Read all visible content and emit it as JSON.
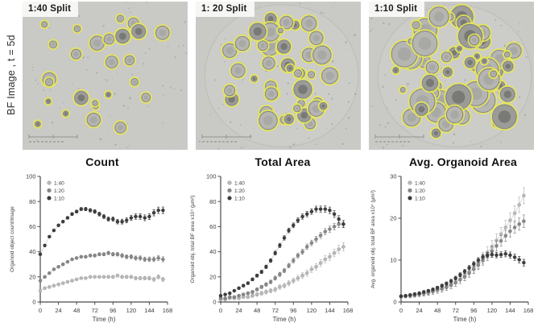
{
  "row_label": "BF Image , t = 5d",
  "images": [
    {
      "label": "1:40 Split",
      "seed": 11,
      "organoids": 26,
      "r_min": 3,
      "r_max": 9,
      "well": false
    },
    {
      "label": "1: 20 Split",
      "seed": 7,
      "organoids": 44,
      "r_min": 3,
      "r_max": 12,
      "well": true
    },
    {
      "label": "1:10 Split",
      "seed": 23,
      "organoids": 62,
      "r_min": 3,
      "r_max": 16,
      "well": true
    }
  ],
  "image_style": {
    "bg": "#c9c9c6",
    "well_fill": "#cdcdca",
    "well_edge": "#bdbdba",
    "organoid_fill": "#b5b5b2",
    "organoid_fill_dark": "#9b9b98",
    "organoid_edge": "#828280",
    "inner": "#a3a3a0",
    "inner_dark": "#6b6b68",
    "outline": "#e6e655",
    "speck": "#88888a"
  },
  "chart_style": {
    "axis": "#4a4a4a",
    "tick_text": "#3d3d3d",
    "line": "#cccccc",
    "colors": {
      "s40": "#b8b8b8",
      "s20": "#878787",
      "s10": "#3c3c3c"
    }
  },
  "chart_data": [
    {
      "type": "scatter",
      "title": "Count",
      "xlabel": "Time (h)",
      "ylabel": "Organoid object count/image",
      "xlim": [
        0,
        168
      ],
      "ylim": [
        0,
        100
      ],
      "xticks": [
        0,
        24,
        48,
        72,
        96,
        120,
        144,
        168
      ],
      "yticks": [
        0,
        20,
        40,
        60,
        80,
        100
      ],
      "legend_position": "top-left",
      "x": [
        0,
        6,
        12,
        18,
        24,
        30,
        36,
        42,
        48,
        54,
        60,
        66,
        72,
        78,
        84,
        90,
        96,
        102,
        108,
        114,
        120,
        126,
        132,
        138,
        144,
        150,
        156,
        162
      ],
      "series": [
        {
          "name": "1:40",
          "color": "#b8b8b8",
          "err_max": 1.6,
          "values": [
            9,
            11,
            12,
            13,
            14,
            15,
            16,
            17,
            18,
            19,
            19,
            20,
            20,
            20,
            20,
            20,
            20,
            21,
            20,
            20,
            20,
            19,
            19,
            19,
            19,
            18,
            20,
            18
          ]
        },
        {
          "name": "1:20",
          "color": "#878787",
          "err_max": 2.0,
          "values": [
            17,
            20,
            23,
            26,
            28,
            30,
            32,
            34,
            35,
            36,
            36,
            37,
            37,
            38,
            38,
            39,
            38,
            38,
            37,
            36,
            36,
            35,
            35,
            34,
            34,
            34,
            35,
            34
          ]
        },
        {
          "name": "1:10",
          "color": "#3c3c3c",
          "err_max": 2.6,
          "values": [
            38,
            45,
            52,
            57,
            61,
            64,
            67,
            70,
            72,
            74,
            74,
            73,
            72,
            70,
            68,
            66,
            66,
            64,
            64,
            65,
            67,
            68,
            68,
            67,
            68,
            71,
            73,
            73
          ]
        }
      ]
    },
    {
      "type": "scatter",
      "title": "Total Area",
      "xlabel": "Time (h)",
      "ylabel": "Organoid obj. total BF area x10⁴ (µm²)",
      "xlim": [
        0,
        168
      ],
      "ylim": [
        0,
        100
      ],
      "xticks": [
        0,
        24,
        48,
        72,
        96,
        120,
        144,
        168
      ],
      "yticks": [
        0,
        20,
        40,
        60,
        80,
        100
      ],
      "legend_position": "top-left",
      "x": [
        0,
        6,
        12,
        18,
        24,
        30,
        36,
        42,
        48,
        54,
        60,
        66,
        72,
        78,
        84,
        90,
        96,
        102,
        108,
        114,
        120,
        126,
        132,
        138,
        144,
        150,
        156,
        162
      ],
      "series": [
        {
          "name": "1:40",
          "color": "#b8b8b8",
          "err_max": 3.2,
          "values": [
            2,
            2,
            3,
            3,
            3,
            4,
            4,
            5,
            6,
            7,
            8,
            9,
            10,
            12,
            13,
            15,
            17,
            19,
            21,
            23,
            26,
            28,
            31,
            34,
            36,
            39,
            42,
            44
          ]
        },
        {
          "name": "1:20",
          "color": "#878787",
          "err_max": 2.8,
          "values": [
            3,
            3,
            4,
            4,
            5,
            6,
            7,
            8,
            10,
            12,
            14,
            16,
            19,
            22,
            25,
            29,
            33,
            37,
            40,
            44,
            47,
            50,
            53,
            56,
            58,
            60,
            62,
            62
          ]
        },
        {
          "name": "1:10",
          "color": "#3c3c3c",
          "err_max": 2.8,
          "values": [
            5,
            6,
            7,
            9,
            11,
            13,
            15,
            18,
            21,
            24,
            28,
            33,
            39,
            45,
            51,
            57,
            61,
            65,
            68,
            70,
            72,
            74,
            74,
            74,
            73,
            70,
            66,
            62
          ]
        }
      ]
    },
    {
      "type": "scatter",
      "title": "Avg. Organoid Area",
      "xlabel": "Time (h)",
      "ylabel": "Avg. organoid obj. total BF area x10⁴ (µm²)",
      "xlim": [
        0,
        168
      ],
      "ylim": [
        0,
        30
      ],
      "xticks": [
        0,
        24,
        48,
        72,
        96,
        120,
        144,
        168
      ],
      "yticks": [
        0,
        10,
        20,
        30
      ],
      "legend_position": "top-left",
      "x": [
        0,
        6,
        12,
        18,
        24,
        30,
        36,
        42,
        48,
        54,
        60,
        66,
        72,
        78,
        84,
        90,
        96,
        102,
        108,
        114,
        120,
        126,
        132,
        138,
        144,
        150,
        156,
        162
      ],
      "series": [
        {
          "name": "1:40",
          "color": "#b8b8b8",
          "err_max": 1.9,
          "values": [
            1.3,
            1.4,
            1.5,
            1.7,
            1.9,
            2.1,
            2.3,
            2.6,
            2.9,
            3.3,
            3.7,
            4.2,
            4.8,
            5.5,
            6.3,
            7.2,
            8.2,
            9.3,
            10.5,
            11.8,
            13.2,
            14.7,
            16.2,
            17.8,
            19.5,
            21.2,
            23.2,
            25.4
          ]
        },
        {
          "name": "1:20",
          "color": "#878787",
          "err_max": 1.5,
          "values": [
            1.3,
            1.4,
            1.5,
            1.6,
            1.8,
            2.0,
            2.2,
            2.5,
            2.8,
            3.1,
            3.5,
            4.0,
            4.6,
            5.3,
            6.0,
            6.9,
            7.8,
            8.8,
            9.9,
            11.0,
            12.2,
            13.4,
            14.6,
            15.8,
            16.9,
            17.8,
            18.6,
            19.3
          ]
        },
        {
          "name": "1:10",
          "color": "#3c3c3c",
          "err_max": 0.8,
          "values": [
            1.4,
            1.5,
            1.7,
            1.9,
            2.1,
            2.4,
            2.7,
            3.0,
            3.4,
            3.9,
            4.4,
            5.0,
            5.7,
            6.5,
            7.3,
            8.2,
            9.1,
            10.0,
            10.8,
            11.2,
            11.3,
            11.2,
            11.3,
            11.5,
            11.2,
            10.7,
            10.1,
            9.4
          ]
        }
      ]
    }
  ]
}
